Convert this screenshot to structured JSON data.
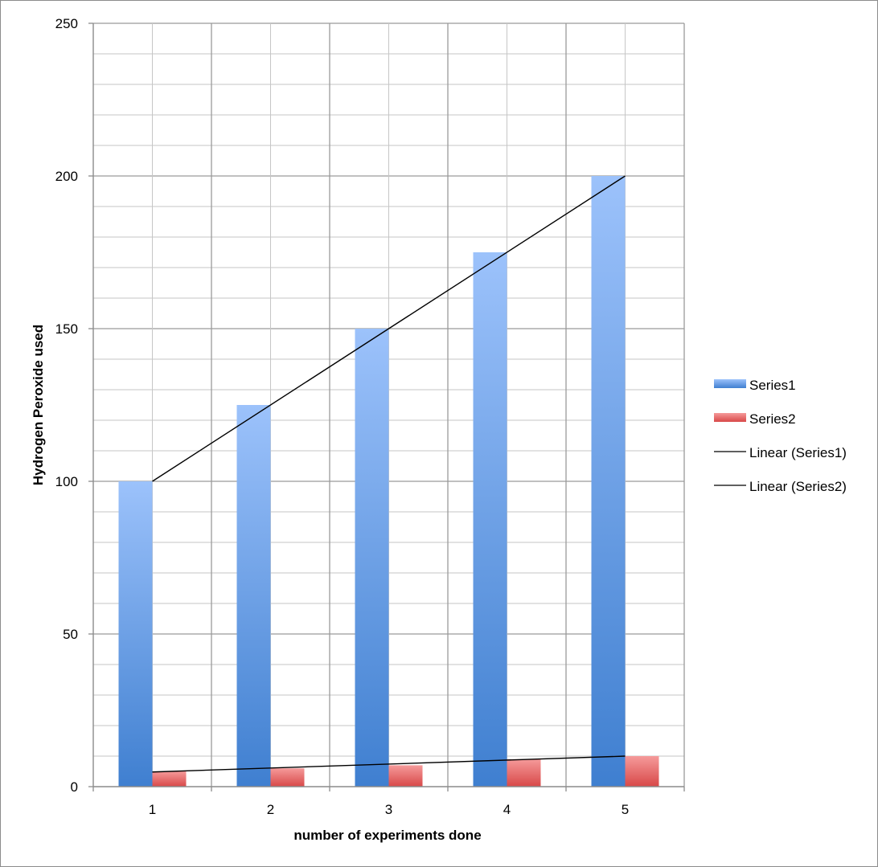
{
  "chart_data": {
    "type": "bar",
    "title": "",
    "xlabel": "number of experiments done",
    "ylabel": "Hydrogen Peroxide used",
    "categories": [
      "1",
      "2",
      "3",
      "4",
      "5"
    ],
    "ylim": [
      0,
      250
    ],
    "y_major_ticks": [
      0,
      50,
      100,
      150,
      200,
      250
    ],
    "y_minor_step": 10,
    "grid": true,
    "legend_position": "right",
    "series": [
      {
        "name": "Series1",
        "values": [
          100,
          125,
          150,
          175,
          200
        ],
        "color": "#4a86d4"
      },
      {
        "name": "Series2",
        "values": [
          5,
          6,
          7,
          9,
          10
        ],
        "color": "#e05050"
      }
    ],
    "trendlines": [
      {
        "name": "Linear (Series1)",
        "of": "Series1",
        "kind": "linear",
        "color": "#000000"
      },
      {
        "name": "Linear (Series2)",
        "of": "Series2",
        "kind": "linear",
        "color": "#000000"
      }
    ]
  }
}
